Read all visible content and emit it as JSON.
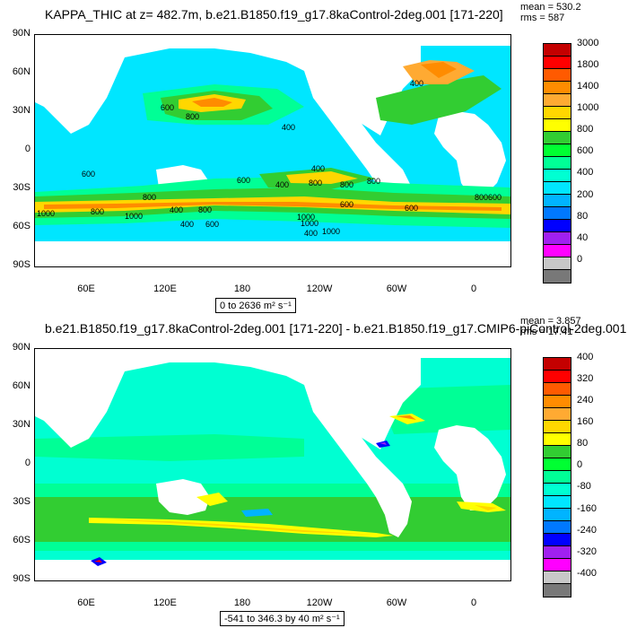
{
  "top": {
    "title": "KAPPA_THIC at z= 482.7m, b.e21.B1850.f19_g17.8kaControl-2deg.001 [171-220]",
    "mean": "mean = 530.2",
    "rms": "rms = 587",
    "range": "0 to 2636 m² s⁻¹",
    "lat_labels": [
      "90N",
      "60N",
      "30N",
      "0",
      "30S",
      "60S",
      "90S"
    ],
    "lon_labels": [
      "60E",
      "120E",
      "180",
      "120W",
      "60W",
      "0"
    ],
    "contour_labels": [
      "600",
      "800",
      "400",
      "400",
      "800",
      "600",
      "400",
      "600",
      "800",
      "400",
      "600",
      "1000",
      "1000",
      "600",
      "1000",
      "800",
      "400",
      "800",
      "600",
      "1000",
      "800",
      "1000",
      "400",
      "600",
      "800",
      "800",
      "400"
    ],
    "colorbar_labels": [
      "3000",
      "1800",
      "1400",
      "1000",
      "800",
      "600",
      "400",
      "200",
      "80",
      "40",
      "0"
    ],
    "colorbar_colors": [
      "#c40000",
      "#ff0000",
      "#ff5a00",
      "#ff8c00",
      "#ffaa32",
      "#ffd700",
      "#ffff00",
      "#32cd32",
      "#00ff32",
      "#00ff96",
      "#00ffd2",
      "#00e6ff",
      "#00b4ff",
      "#0078ff",
      "#0000ff",
      "#a020f0",
      "#ff00ff",
      "#c8c8c8",
      "#787878"
    ]
  },
  "bottom": {
    "title": "b.e21.B1850.f19_g17.8kaControl-2deg.001 [171-220] - b.e21.B1850.f19_g17.CMIP6-piControl-2deg.001 [451-",
    "mean": "mean = 3.857",
    "rms": "rms = 17.41",
    "range": "-541 to 346.3 by 40 m² s⁻¹",
    "lat_labels": [
      "90N",
      "60N",
      "30N",
      "0",
      "30S",
      "60S",
      "90S"
    ],
    "lon_labels": [
      "60E",
      "120E",
      "180",
      "120W",
      "60W",
      "0"
    ],
    "colorbar_labels": [
      "400",
      "320",
      "240",
      "160",
      "80",
      "0",
      "-80",
      "-160",
      "-240",
      "-320",
      "-400"
    ],
    "colorbar_colors": [
      "#c40000",
      "#ff0000",
      "#ff5a00",
      "#ff8c00",
      "#ffaa32",
      "#ffd700",
      "#ffff00",
      "#32cd32",
      "#00ff32",
      "#00ff96",
      "#00ffd2",
      "#00e6ff",
      "#00b4ff",
      "#0078ff",
      "#0000ff",
      "#a020f0",
      "#ff00ff",
      "#c8c8c8",
      "#787878"
    ]
  }
}
